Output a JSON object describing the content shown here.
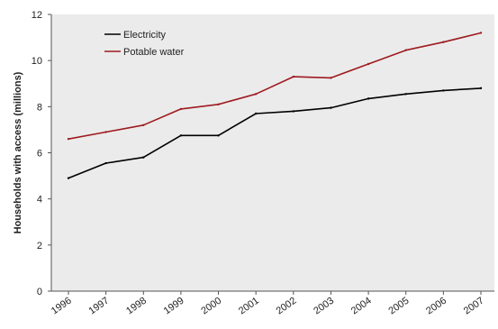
{
  "chart_data": {
    "type": "line",
    "title": "",
    "xlabel": "",
    "ylabel": "Households with access (millions)",
    "x": [
      "1996",
      "1997",
      "1998",
      "1999",
      "2000",
      "2001",
      "2002",
      "2003",
      "2004",
      "2005",
      "2006",
      "2007"
    ],
    "ylim": [
      0,
      12
    ],
    "yticks": [
      0,
      2,
      4,
      6,
      8,
      10,
      12
    ],
    "grid": false,
    "legend_position": "top-left",
    "series": [
      {
        "name": "Electricity",
        "color": "#000000",
        "values": [
          4.9,
          5.55,
          5.8,
          6.75,
          6.75,
          7.7,
          7.8,
          7.95,
          8.35,
          8.55,
          8.7,
          8.8
        ]
      },
      {
        "name": "Potable water",
        "color": "#9e1b20",
        "values": [
          6.6,
          6.9,
          7.2,
          7.9,
          8.1,
          8.55,
          9.3,
          9.25,
          9.85,
          10.45,
          10.8,
          11.2
        ]
      }
    ],
    "plot_background": "#ebebeb"
  }
}
